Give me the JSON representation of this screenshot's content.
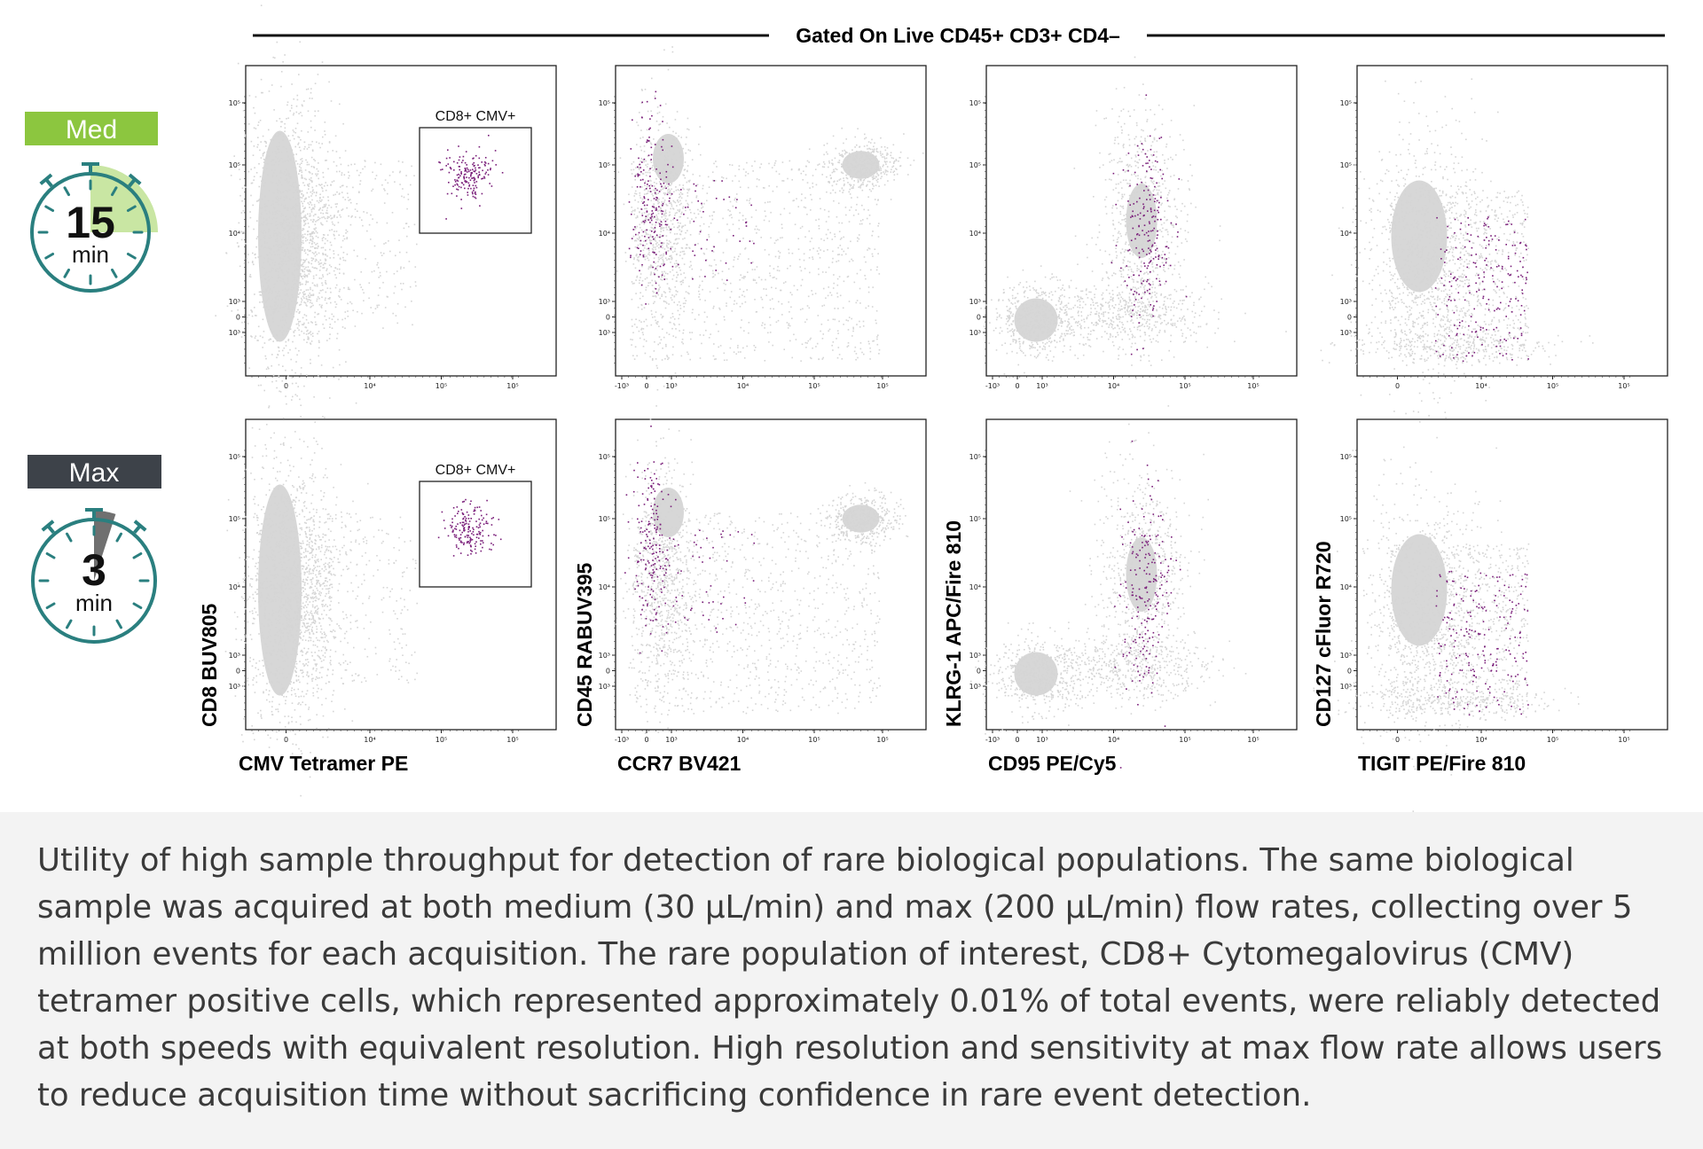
{
  "header": {
    "gate_title": "Gated On Live CD45+ CD3+ CD4–"
  },
  "colors": {
    "med_badge": "#8cc63f",
    "max_badge": "#3d4249",
    "timer_teal": "#2a7f7f",
    "timer_wedge_med": "#c9e6a3",
    "timer_wedge_max": "#707070",
    "background_events": "#d5d5d5",
    "rare_events": "#7a1f7a",
    "caption_bg": "#f3f3f3",
    "caption_text": "#3a3a3a"
  },
  "rows": [
    {
      "badge": "Med",
      "timer_value": "15",
      "timer_unit": "min"
    },
    {
      "badge": "Max",
      "timer_value": "3",
      "timer_unit": "min"
    }
  ],
  "gate_label": "CD8+ CMV+",
  "chart_data": [
    {
      "type": "scatter",
      "panel": "CMV Tetramer PE vs CD8 BUV805",
      "xlabel": "CMV Tetramer PE",
      "ylabel": "CD8 BUV805",
      "xticks": [
        "0",
        "10⁴",
        "10⁵",
        "10⁵"
      ],
      "yticks": [
        "10⁵",
        "10⁵",
        "10⁴",
        "10³",
        "0",
        "10³"
      ],
      "gate": "CD8+ CMV+"
    },
    {
      "type": "scatter",
      "panel": "CCR7 BV421 vs CD45 RABUV395",
      "xlabel": "CCR7 BV421",
      "ylabel": "CD45 RABUV395",
      "xticks": [
        "-10³",
        "0",
        "10³",
        "10⁴",
        "10⁵",
        "10⁵"
      ],
      "yticks": [
        "10⁵",
        "10⁵",
        "10⁴",
        "10³",
        "0",
        "10³"
      ]
    },
    {
      "type": "scatter",
      "panel": "CD95 PE/Cy5 vs KLRG-1 APC/Fire 810",
      "xlabel": "CD95 PE/Cy5",
      "ylabel": "KLRG-1 APC/Fire 810",
      "xticks": [
        "-10³",
        "0",
        "10³",
        "10⁴",
        "10⁵",
        "10⁵"
      ],
      "yticks": [
        "10⁵",
        "10⁵",
        "10⁴",
        "10³",
        "0",
        "10³"
      ]
    },
    {
      "type": "scatter",
      "panel": "TIGIT PE/Fire 810 vs CD127 cFluor R720",
      "xlabel": "TIGIT PE/Fire 810",
      "ylabel": "CD127 cFluor R720",
      "xticks": [
        "0",
        "10⁴",
        "10⁵",
        "10⁵"
      ],
      "yticks": [
        "10⁵",
        "10⁵",
        "10⁴",
        "10³",
        "0",
        "10³"
      ]
    }
  ],
  "caption": "Utility of high sample throughput for detection of rare biological populations. The same biological sample was acquired at both medium (30 µL/min) and max (200 µL/min) flow rates, collecting over 5 million events for each acquisition. The rare population of interest, CD8+ Cytomegalovirus (CMV) tetramer positive cells, which represented approximately 0.01% of total events, were reliably detected at both speeds with equivalent resolution. High resolution and sensitivity at max flow rate allows users to reduce acquisition time without sacrificing confidence in rare event detection."
}
